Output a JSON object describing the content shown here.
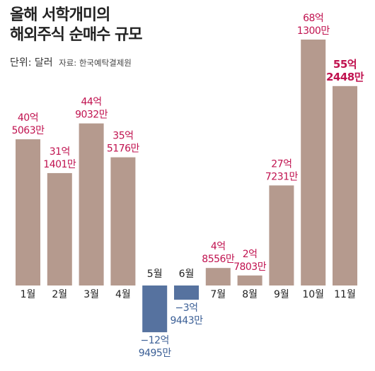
{
  "header": {
    "title_line1": "올해 서학개미의",
    "title_line2": "해외주식 순매수 규모",
    "unit": "단위: 달러",
    "source": "자료: 한국예탁결제원"
  },
  "colors": {
    "positive_bar": "#b59a8e",
    "negative_bar": "#56729f",
    "positive_label": "#c0124f",
    "negative_label": "#3b5f96",
    "axis_label": "#222222"
  },
  "chart_data": {
    "type": "bar",
    "title": "올해 서학개미의 해외주식 순매수 규모",
    "subtitle": "단위: 달러",
    "source": "자료: 한국예탁결제원",
    "categories": [
      "1월",
      "2월",
      "3월",
      "4월",
      "5월",
      "6월",
      "7월",
      "8월",
      "9월",
      "10월",
      "11월"
    ],
    "values": [
      4050630000,
      3114010000,
      4490320000,
      3551760000,
      -1294950000,
      -394430000,
      485560000,
      278030000,
      2772310000,
      6813000000,
      5524480000
    ],
    "data_labels": [
      [
        "40억",
        "5063만"
      ],
      [
        "31억",
        "1401만"
      ],
      [
        "44억",
        "9032만"
      ],
      [
        "35억",
        "5176만"
      ],
      [
        "−12억",
        "9495만"
      ],
      [
        "−3억",
        "9443만"
      ],
      [
        "4억",
        "8556만"
      ],
      [
        "2억",
        "7803만"
      ],
      [
        "27억",
        "7231만"
      ],
      [
        "68억",
        "1300만"
      ],
      [
        "55억",
        "2448만"
      ]
    ],
    "highlight_index": 10,
    "grid": false,
    "legend": "none"
  }
}
